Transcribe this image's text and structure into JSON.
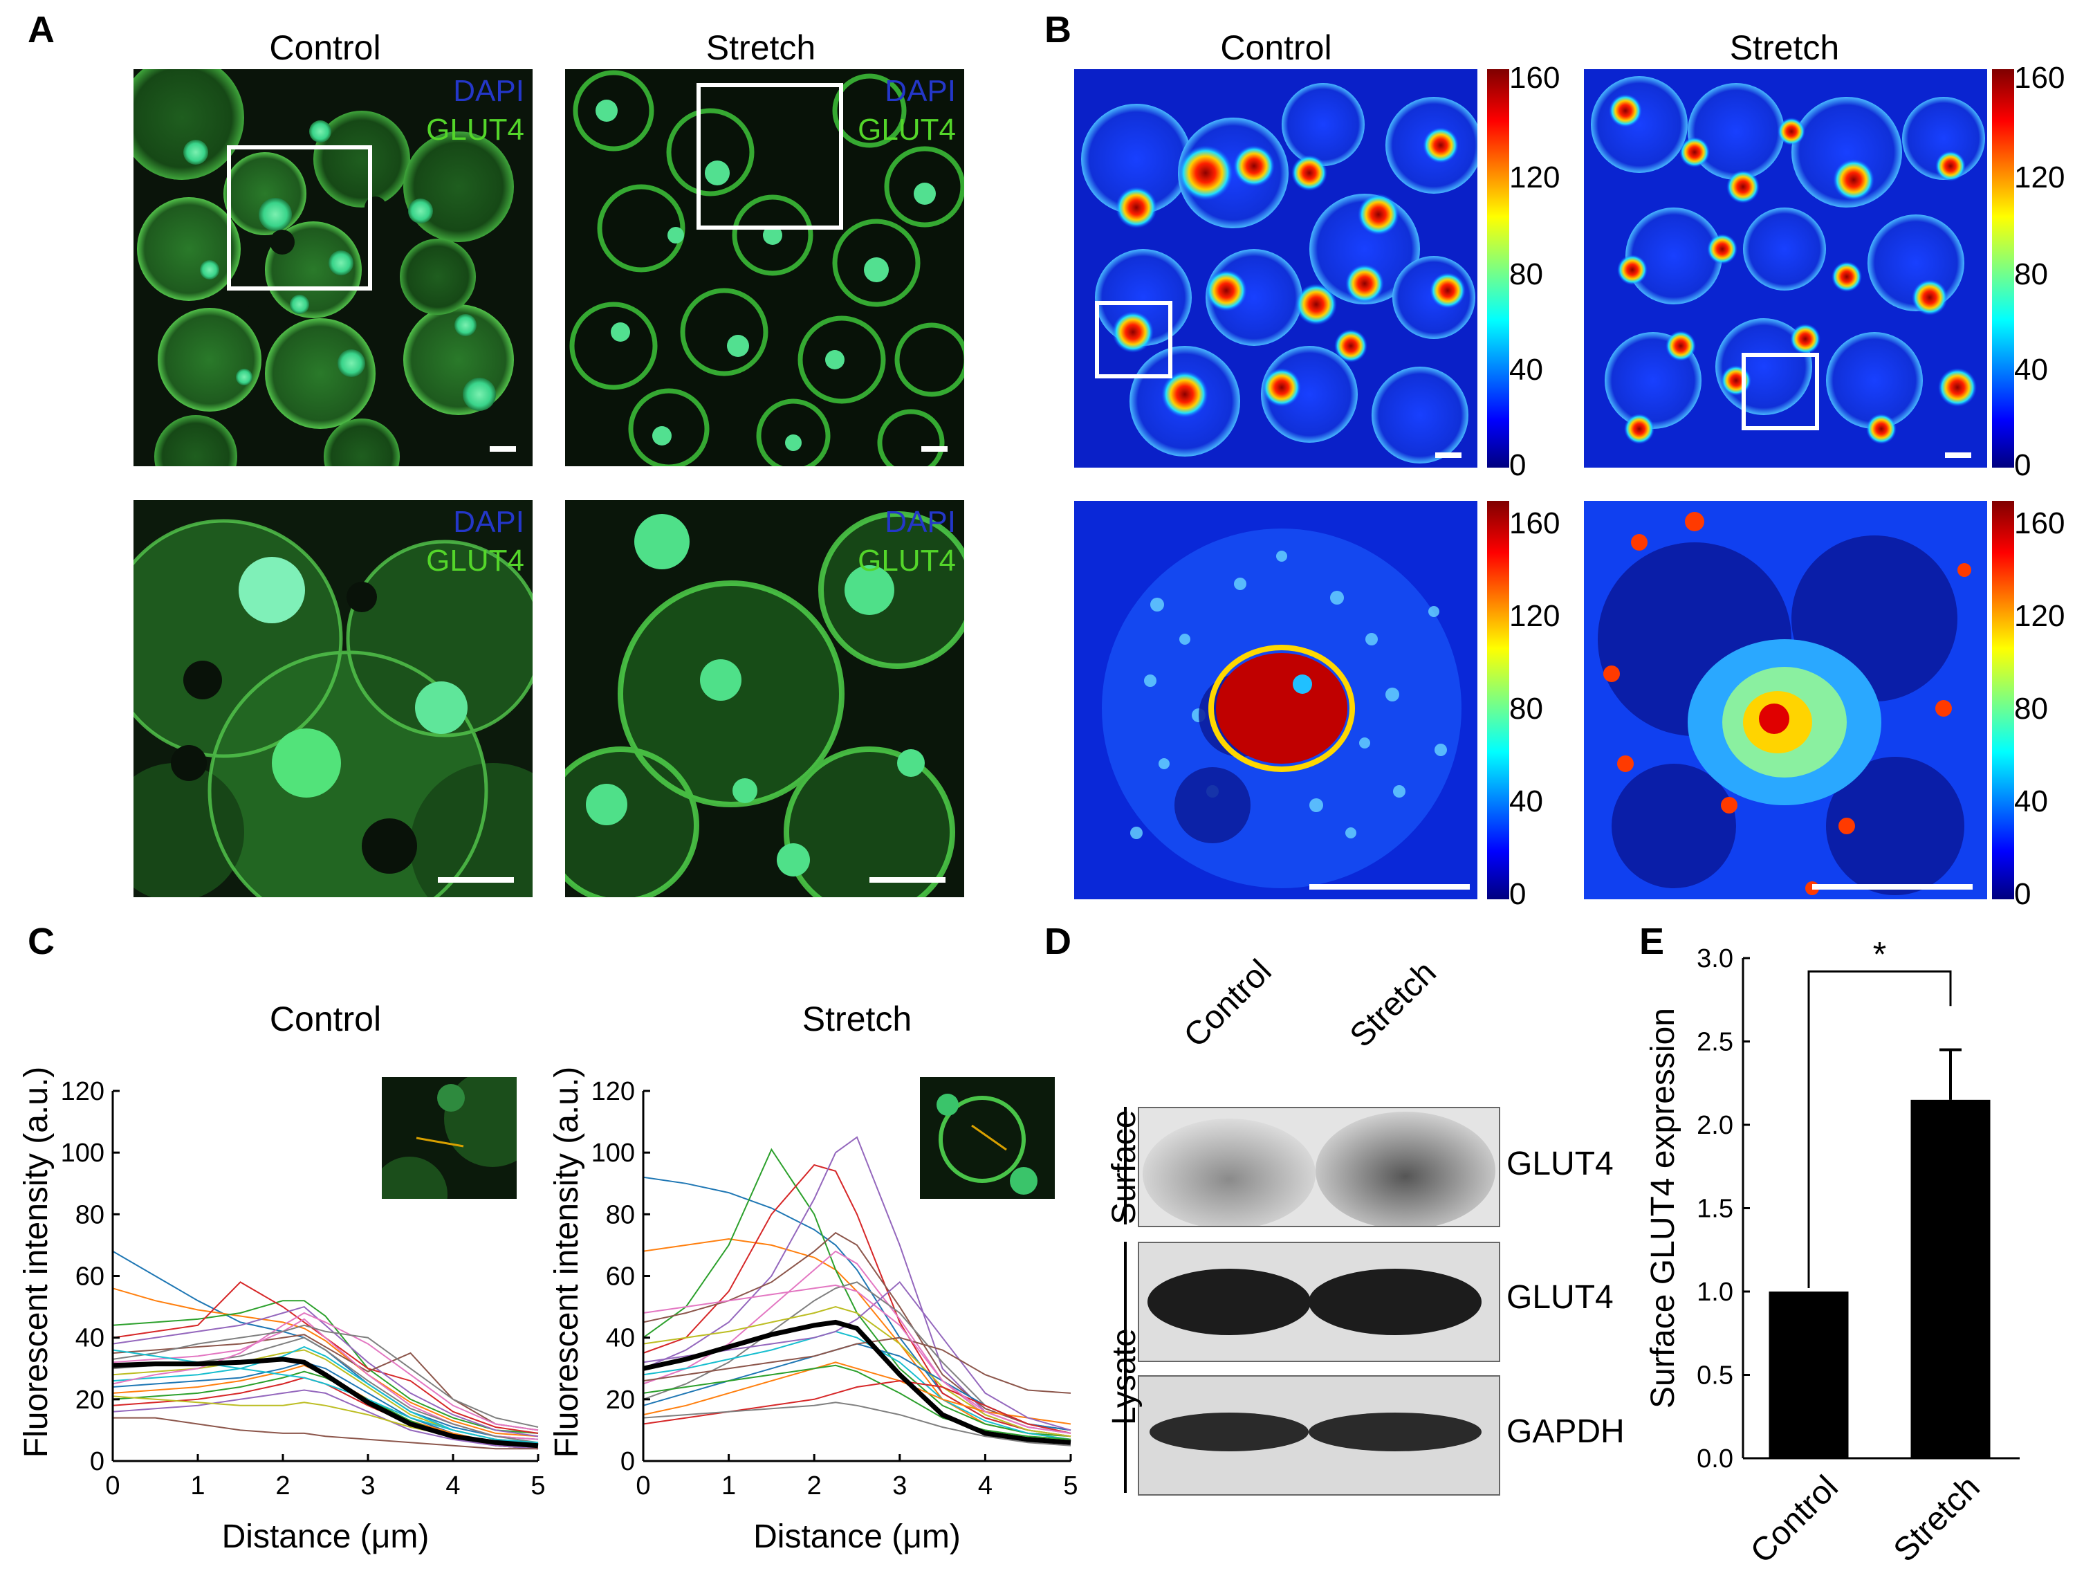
{
  "panels": {
    "A": {
      "letter": "A",
      "titles": [
        "Control",
        "Stretch"
      ],
      "stain_labels": {
        "dapi": "DAPI",
        "glut4": "GLUT4"
      }
    },
    "B": {
      "letter": "B",
      "titles": [
        "Control",
        "Stretch"
      ],
      "colorbar_ticks": [
        "160",
        "120",
        "80",
        "40",
        "0"
      ]
    },
    "C": {
      "letter": "C"
    },
    "D": {
      "letter": "D",
      "lanes": [
        "Control",
        "Stretch"
      ],
      "fractions": [
        "Surface",
        "Lysate"
      ],
      "row_labels": [
        "GLUT4",
        "GLUT4",
        "GAPDH"
      ]
    },
    "E": {
      "letter": "E"
    }
  },
  "colors": {
    "green_stain": "#54d62a",
    "dapi_blue": "#2437c9",
    "mean_line": "#000000",
    "bar_fill": "#000000"
  },
  "chart_data": [
    {
      "id": "C-control",
      "type": "line",
      "title": "Control",
      "xlabel": "Distance (μm)",
      "ylabel": "Fluorescent intensity (a.u.)",
      "xlim": [
        0,
        5
      ],
      "ylim": [
        0,
        120
      ],
      "xticks": [
        0,
        1,
        2,
        3,
        4,
        5
      ],
      "yticks": [
        0,
        20,
        40,
        60,
        80,
        100,
        120
      ],
      "x": [
        0,
        0.5,
        1,
        1.5,
        2,
        2.25,
        2.5,
        3,
        3.5,
        4,
        4.5,
        5
      ],
      "mean": [
        31,
        31.5,
        31.5,
        32,
        33,
        32,
        28,
        19,
        12,
        8,
        6,
        5
      ],
      "traces": [
        [
          68,
          60,
          52,
          45,
          42,
          40,
          36,
          25,
          16,
          11,
          8,
          7
        ],
        [
          56,
          52,
          49,
          47,
          45,
          43,
          39,
          28,
          19,
          13,
          9,
          8
        ],
        [
          44,
          45,
          46,
          48,
          52,
          52,
          47,
          30,
          20,
          14,
          10,
          9
        ],
        [
          40,
          42,
          44,
          58,
          50,
          45,
          40,
          30,
          26,
          16,
          11,
          9
        ],
        [
          38,
          40,
          42,
          44,
          48,
          50,
          44,
          32,
          22,
          15,
          10,
          8
        ],
        [
          35,
          36,
          37,
          38,
          40,
          41,
          37,
          29,
          35,
          20,
          12,
          10
        ],
        [
          32,
          33,
          34,
          36,
          42,
          46,
          40,
          28,
          18,
          12,
          8,
          7
        ],
        [
          30,
          31,
          32,
          34,
          38,
          40,
          36,
          26,
          17,
          12,
          8,
          6
        ],
        [
          28,
          29,
          30,
          32,
          35,
          36,
          33,
          24,
          15,
          10,
          7,
          6
        ],
        [
          26,
          27,
          28,
          30,
          34,
          37,
          34,
          25,
          16,
          10,
          7,
          5
        ],
        [
          24,
          25,
          26,
          27,
          30,
          32,
          30,
          22,
          14,
          9,
          6,
          5
        ],
        [
          22,
          23,
          24,
          26,
          29,
          31,
          28,
          20,
          13,
          9,
          6,
          5
        ],
        [
          20,
          21,
          22,
          24,
          27,
          29,
          27,
          20,
          13,
          8,
          5,
          4
        ],
        [
          18,
          19,
          20,
          22,
          25,
          27,
          25,
          18,
          12,
          8,
          5,
          4
        ],
        [
          16,
          17,
          18,
          20,
          22,
          23,
          22,
          16,
          10,
          7,
          5,
          4
        ],
        [
          14,
          14,
          12,
          10,
          9,
          9,
          8,
          7,
          6,
          5,
          4,
          4
        ],
        [
          25,
          28,
          30,
          35,
          44,
          48,
          45,
          38,
          28,
          18,
          12,
          10
        ],
        [
          33,
          35,
          38,
          40,
          42,
          44,
          42,
          40,
          30,
          20,
          14,
          11
        ],
        [
          21,
          20,
          19,
          18,
          18,
          19,
          18,
          15,
          11,
          8,
          6,
          5
        ],
        [
          36,
          34,
          32,
          30,
          28,
          27,
          25,
          20,
          14,
          10,
          7,
          6
        ]
      ]
    },
    {
      "id": "C-stretch",
      "type": "line",
      "title": "Stretch",
      "xlabel": "Distance (μm)",
      "ylabel": "Fluorescent intensity (a.u.)",
      "xlim": [
        0,
        5
      ],
      "ylim": [
        0,
        120
      ],
      "xticks": [
        0,
        1,
        2,
        3,
        4,
        5
      ],
      "yticks": [
        0,
        20,
        40,
        60,
        80,
        100,
        120
      ],
      "x": [
        0,
        0.5,
        1,
        1.5,
        2,
        2.25,
        2.5,
        3,
        3.5,
        4,
        4.5,
        5
      ],
      "mean": [
        30,
        33,
        37,
        41,
        44,
        45,
        43,
        28,
        15,
        9,
        7,
        6
      ],
      "traces": [
        [
          92,
          90,
          87,
          82,
          75,
          70,
          62,
          40,
          22,
          14,
          10,
          8
        ],
        [
          68,
          70,
          72,
          70,
          66,
          62,
          55,
          38,
          20,
          12,
          9,
          7
        ],
        [
          40,
          50,
          70,
          101,
          80,
          62,
          48,
          30,
          18,
          12,
          9,
          8
        ],
        [
          35,
          40,
          55,
          80,
          96,
          94,
          80,
          45,
          22,
          14,
          10,
          8
        ],
        [
          30,
          36,
          45,
          60,
          85,
          100,
          105,
          70,
          30,
          16,
          11,
          9
        ],
        [
          45,
          48,
          52,
          58,
          68,
          74,
          70,
          50,
          28,
          17,
          12,
          10
        ],
        [
          25,
          30,
          38,
          50,
          62,
          68,
          64,
          46,
          26,
          15,
          10,
          8
        ],
        [
          20,
          25,
          32,
          42,
          52,
          56,
          58,
          48,
          32,
          18,
          12,
          9
        ],
        [
          38,
          40,
          42,
          45,
          48,
          50,
          48,
          38,
          24,
          15,
          10,
          8
        ],
        [
          28,
          30,
          33,
          36,
          40,
          42,
          40,
          32,
          20,
          13,
          9,
          7
        ],
        [
          18,
          22,
          26,
          30,
          34,
          36,
          38,
          34,
          26,
          18,
          12,
          10
        ],
        [
          15,
          18,
          22,
          26,
          30,
          32,
          30,
          26,
          20,
          16,
          14,
          12
        ],
        [
          22,
          24,
          26,
          28,
          30,
          31,
          29,
          22,
          14,
          10,
          8,
          7
        ],
        [
          12,
          14,
          16,
          18,
          20,
          22,
          24,
          26,
          24,
          18,
          12,
          9
        ],
        [
          32,
          34,
          36,
          38,
          40,
          42,
          46,
          58,
          40,
          22,
          14,
          10
        ],
        [
          26,
          28,
          30,
          32,
          34,
          36,
          38,
          40,
          36,
          28,
          23,
          22
        ],
        [
          48,
          50,
          52,
          54,
          56,
          57,
          55,
          44,
          26,
          16,
          11,
          9
        ],
        [
          14,
          15,
          16,
          17,
          18,
          19,
          18,
          15,
          11,
          8,
          6,
          5
        ]
      ]
    },
    {
      "id": "E",
      "type": "bar",
      "categories": [
        "Control",
        "Stretch"
      ],
      "values": [
        1.0,
        2.15
      ],
      "errors": [
        0,
        0.3
      ],
      "title": "",
      "xlabel": "",
      "ylabel": "Surface GLUT4 expression",
      "ylim": [
        0,
        3.0
      ],
      "yticks": [
        "0.0",
        "0.5",
        "1.0",
        "1.5",
        "2.0",
        "2.5",
        "3.0"
      ],
      "significance": "*"
    }
  ]
}
